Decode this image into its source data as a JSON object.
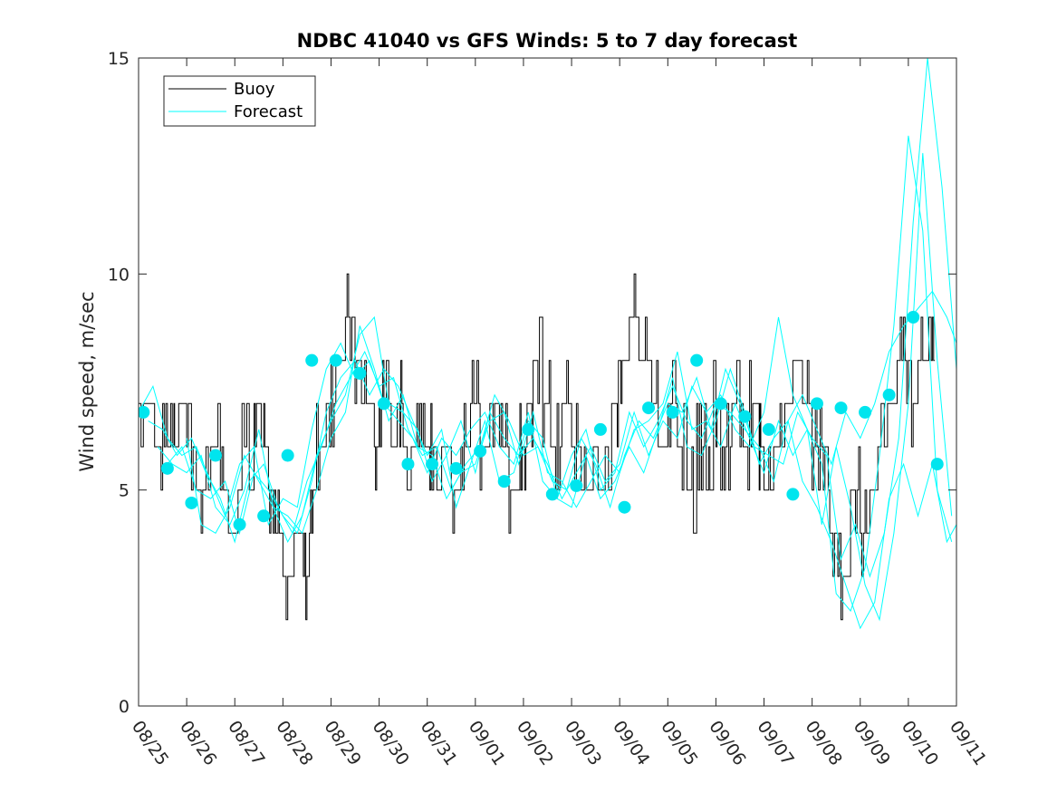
{
  "chart_data": {
    "type": "line",
    "title": "NDBC 41040 vs GFS Winds: 5 to 7 day forecast",
    "xlabel": "",
    "ylabel": "Wind speed, m/sec",
    "xlim": [
      0,
      17
    ],
    "ylim": [
      0,
      15
    ],
    "x_tick_labels": [
      "08/25",
      "08/26",
      "08/27",
      "08/28",
      "08/29",
      "08/30",
      "08/31",
      "09/01",
      "09/02",
      "09/03",
      "09/04",
      "09/05",
      "09/06",
      "09/07",
      "09/08",
      "09/09",
      "09/10",
      "09/11"
    ],
    "y_ticks": [
      0,
      5,
      10,
      15
    ],
    "y_tick_labels": [
      "0",
      "5",
      "10",
      "15"
    ],
    "legend": {
      "position": "top-left",
      "entries": [
        "Buoy",
        "Forecast"
      ]
    },
    "colors": {
      "buoy": "#000000",
      "forecast": "#00ffff",
      "markers": "#00e5ee"
    },
    "series": [
      {
        "name": "Buoy",
        "x": [
          0,
          0.3,
          0.5,
          0.7,
          0.8,
          1.0,
          1.2,
          1.4,
          1.7,
          1.9,
          2.1,
          2.4,
          2.55,
          2.7,
          2.85,
          3.0,
          3.2,
          3.4,
          3.55,
          3.7,
          3.9,
          4.1,
          4.3,
          4.5,
          4.7,
          4.9,
          5.05,
          5.2,
          5.35,
          5.5,
          5.75,
          5.95,
          6.1,
          6.3,
          6.5,
          6.7,
          6.9,
          7.1,
          7.3,
          7.5,
          7.7,
          7.9,
          8.05,
          8.2,
          8.4,
          8.6,
          8.8,
          9.0,
          9.2,
          9.4,
          9.55,
          9.7,
          9.9,
          10.05,
          10.2,
          10.4,
          10.6,
          10.8,
          11.0,
          11.2,
          11.4,
          11.6,
          11.8,
          11.95,
          12.1,
          12.3,
          12.5,
          12.7,
          12.9,
          13.0,
          13.2,
          13.4,
          13.6,
          13.8,
          14.0,
          14.2,
          14.4,
          14.6,
          14.8,
          15.0,
          15.2,
          15.4,
          15.6,
          15.8,
          16.0,
          16.2,
          16.4,
          16.55
        ],
        "y": [
          7,
          6,
          7,
          6,
          7,
          6,
          5,
          6,
          5,
          4,
          6,
          7,
          6,
          5,
          4,
          3,
          4,
          3,
          5,
          6,
          7,
          8,
          9,
          8,
          7,
          6,
          7,
          6,
          7,
          6,
          7,
          6,
          5,
          6,
          5,
          6,
          7,
          6,
          7,
          6,
          5,
          6,
          7,
          8,
          7,
          6,
          7,
          6,
          5,
          6,
          5,
          6,
          7,
          8,
          9,
          8,
          7,
          6,
          7,
          6,
          5,
          6,
          5,
          7,
          6,
          7,
          6,
          7,
          6,
          5,
          6,
          7,
          8,
          7,
          6,
          5,
          4,
          3,
          5,
          4,
          5,
          6,
          7,
          8,
          7,
          8,
          9,
          8
        ]
      },
      {
        "name": "Forecast",
        "segments": [
          {
            "x": [
              0,
              0.3,
              0.6,
              0.9,
              1.2,
              1.5,
              1.8,
              2.1,
              2.4,
              2.7,
              3.0,
              3.3,
              3.6,
              3.9,
              4.2,
              4.5,
              4.8,
              5.1,
              5.4,
              5.7,
              6.0,
              6.3,
              6.6,
              6.9,
              7.2,
              7.5,
              7.8,
              8.1,
              8.4,
              8.7,
              9.0,
              9.3,
              9.6,
              9.9,
              10.2,
              10.5,
              10.8,
              11.1,
              11.4,
              11.7,
              12.0,
              12.3,
              12.6,
              12.9,
              13.2,
              13.5,
              13.8,
              14.1,
              14.4,
              14.7,
              15.0,
              15.3,
              15.6,
              15.9,
              16.2,
              16.5,
              16.8,
              17.0
            ],
            "y": [
              6.8,
              7.4,
              6.2,
              5.8,
              6.0,
              5.2,
              4.4,
              5.6,
              6.0,
              4.2,
              4.8,
              4.6,
              6.4,
              7.8,
              8.4,
              7.6,
              8.0,
              7.0,
              6.6,
              6.2,
              5.4,
              6.2,
              5.8,
              6.4,
              6.8,
              6.0,
              5.6,
              6.8,
              5.2,
              4.8,
              5.8,
              6.4,
              5.0,
              5.4,
              6.8,
              6.0,
              6.6,
              7.4,
              6.6,
              6.2,
              7.0,
              6.8,
              6.4,
              6.0,
              5.2,
              6.6,
              7.2,
              6.4,
              5.6,
              6.8,
              6.2,
              7.0,
              8.2,
              8.8,
              9.2,
              9.6,
              9.0,
              8.4
            ]
          },
          {
            "x": [
              0.2,
              0.5,
              0.8,
              1.1,
              1.4,
              1.7,
              2.0,
              2.3,
              2.6,
              2.9,
              3.2,
              3.5,
              3.8,
              4.1,
              4.4,
              4.7,
              5.0,
              5.3,
              5.6,
              5.9,
              6.2,
              6.5,
              6.8,
              7.1,
              7.4,
              7.7,
              8.0,
              8.3,
              8.6,
              8.9,
              9.2,
              9.5,
              9.8,
              10.1,
              10.4,
              10.7,
              11.0,
              11.3,
              11.6,
              11.9,
              12.2,
              12.5,
              12.8,
              13.1,
              13.4,
              13.7,
              14.0,
              14.3,
              14.6,
              14.9,
              15.2,
              15.5,
              15.8,
              16.1,
              16.4,
              16.7,
              17.0
            ],
            "y": [
              6.6,
              6.4,
              5.8,
              6.2,
              5.4,
              4.8,
              3.8,
              5.2,
              5.6,
              4.6,
              4.0,
              5.2,
              6.0,
              7.0,
              7.6,
              8.2,
              7.4,
              7.6,
              6.4,
              5.8,
              6.0,
              5.0,
              5.6,
              6.0,
              7.2,
              6.6,
              5.8,
              6.0,
              5.2,
              5.0,
              6.2,
              5.6,
              4.6,
              5.8,
              6.6,
              6.2,
              7.0,
              6.8,
              7.6,
              6.4,
              7.8,
              7.0,
              6.0,
              5.8,
              5.6,
              6.8,
              6.2,
              5.8,
              3.4,
              4.2,
              3.0,
              4.0,
              6.2,
              11.2,
              15.0,
              12.0,
              7.8
            ]
          },
          {
            "x": [
              0.4,
              0.7,
              1.0,
              1.3,
              1.6,
              1.9,
              2.2,
              2.5,
              2.8,
              3.1,
              3.4,
              3.7,
              4.0,
              4.3,
              4.6,
              4.9,
              5.2,
              5.5,
              5.8,
              6.1,
              6.4,
              6.7,
              7.0,
              7.3,
              7.6,
              7.9,
              8.2,
              8.5,
              8.8,
              9.1,
              9.4,
              9.7,
              10.0,
              10.3,
              10.6,
              10.9,
              11.2,
              11.5,
              11.8,
              12.1,
              12.4,
              12.7,
              13.0,
              13.3,
              13.6,
              13.9,
              14.2,
              14.5,
              14.8,
              15.1,
              15.4,
              15.7,
              16.0,
              16.3,
              16.6,
              16.9
            ],
            "y": [
              6.0,
              5.6,
              5.4,
              5.8,
              4.6,
              4.2,
              5.0,
              6.4,
              4.6,
              3.8,
              4.4,
              5.8,
              6.6,
              7.2,
              8.6,
              9.0,
              7.0,
              6.8,
              6.4,
              5.2,
              5.8,
              6.6,
              5.4,
              6.8,
              6.2,
              5.8,
              6.2,
              5.6,
              4.8,
              5.4,
              6.0,
              5.2,
              5.6,
              6.8,
              5.8,
              6.6,
              6.2,
              7.4,
              6.8,
              7.2,
              6.4,
              6.0,
              6.8,
              9.0,
              7.2,
              6.4,
              5.6,
              2.6,
              2.2,
              3.2,
              5.8,
              8.8,
              13.2,
              11.0,
              5.0,
              3.8
            ]
          },
          {
            "x": [
              0.6,
              0.9,
              1.2,
              1.5,
              1.8,
              2.1,
              2.4,
              2.7,
              3.0,
              3.3,
              3.6,
              3.9,
              4.2,
              4.5,
              4.8,
              5.1,
              5.4,
              5.7,
              6.0,
              6.3,
              6.6,
              6.9,
              7.2,
              7.5,
              7.8,
              8.1,
              8.4,
              8.7,
              9.0,
              9.3,
              9.6,
              9.9,
              10.2,
              10.5,
              10.8,
              11.1,
              11.4,
              11.7,
              12.0,
              12.3,
              12.6,
              12.9,
              13.2,
              13.5,
              13.8,
              14.1,
              14.4,
              14.7,
              15.0,
              15.3,
              15.6,
              15.9,
              16.2,
              16.5,
              16.8,
              17.0
            ],
            "y": [
              5.6,
              6.0,
              5.0,
              4.8,
              5.2,
              4.0,
              5.4,
              5.0,
              4.4,
              4.0,
              5.2,
              6.8,
              7.6,
              8.0,
              7.2,
              7.8,
              7.4,
              6.6,
              5.8,
              6.4,
              4.6,
              5.6,
              6.6,
              5.2,
              5.4,
              6.6,
              6.2,
              4.8,
              4.6,
              5.8,
              4.8,
              5.2,
              6.0,
              5.4,
              6.4,
              7.6,
              6.0,
              5.8,
              6.6,
              7.8,
              6.8,
              5.6,
              6.2,
              6.6,
              5.2,
              4.6,
              3.8,
              2.8,
              1.8,
              2.4,
              4.8,
              5.6,
              4.4,
              5.6,
              3.8,
              4.2
            ]
          },
          {
            "x": [
              1.0,
              1.3,
              1.6,
              1.9,
              2.2,
              2.5,
              2.8,
              3.1,
              3.4,
              3.7,
              4.0,
              4.3,
              4.6,
              4.9,
              5.2,
              5.5,
              5.8,
              6.1,
              6.4,
              6.7,
              7.0,
              7.3,
              7.6,
              7.9,
              8.2,
              8.5,
              8.8,
              9.1,
              9.4,
              9.7,
              10.0,
              10.3,
              10.6,
              10.9,
              11.2,
              11.5,
              11.8,
              12.1,
              12.4,
              12.7,
              13.0,
              13.3,
              13.6,
              13.9,
              14.2,
              14.5,
              14.8,
              15.1,
              15.4,
              15.7,
              16.0,
              16.3,
              16.6,
              16.9
            ],
            "y": [
              6.2,
              4.2,
              4.0,
              4.6,
              5.8,
              5.2,
              4.6,
              4.4,
              4.0,
              5.0,
              6.2,
              6.8,
              8.8,
              7.8,
              6.6,
              7.2,
              6.0,
              5.8,
              4.8,
              5.4,
              5.6,
              6.6,
              6.8,
              5.6,
              6.8,
              5.4,
              5.2,
              4.6,
              5.2,
              5.8,
              5.4,
              6.4,
              6.6,
              7.0,
              8.2,
              6.4,
              6.6,
              6.0,
              7.0,
              6.2,
              5.4,
              6.6,
              5.8,
              6.4,
              4.2,
              6.0,
              4.6,
              2.8,
              2.0,
              4.0,
              7.0,
              12.8,
              8.0,
              4.4
            ]
          }
        ]
      },
      {
        "name": "Forecast markers",
        "x": [
          0.1,
          0.6,
          1.1,
          1.6,
          2.1,
          2.6,
          3.1,
          3.6,
          4.1,
          4.6,
          5.1,
          5.6,
          6.1,
          6.6,
          7.1,
          7.6,
          8.1,
          8.6,
          9.1,
          9.6,
          10.1,
          10.6,
          11.1,
          11.6,
          12.1,
          12.6,
          13.1,
          13.6,
          14.1,
          14.6,
          15.1,
          15.6,
          16.1,
          16.6
        ],
        "y": [
          6.8,
          5.5,
          4.7,
          5.8,
          4.2,
          4.4,
          5.8,
          8.0,
          8.0,
          7.7,
          7.0,
          5.6,
          5.6,
          5.5,
          5.9,
          5.2,
          6.4,
          4.9,
          5.1,
          6.4,
          4.6,
          6.9,
          6.8,
          8.0,
          7.0,
          6.7,
          6.4,
          4.9,
          7.0,
          6.9,
          6.8,
          7.2,
          9.0,
          5.6
        ]
      }
    ]
  }
}
